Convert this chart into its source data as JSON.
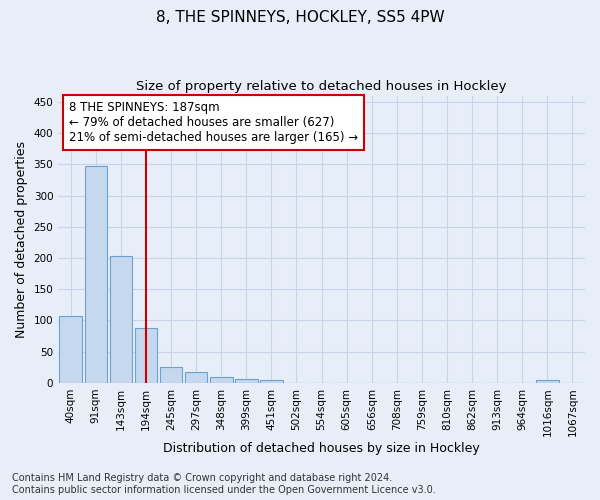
{
  "title": "8, THE SPINNEYS, HOCKLEY, SS5 4PW",
  "subtitle": "Size of property relative to detached houses in Hockley",
  "xlabel": "Distribution of detached houses by size in Hockley",
  "ylabel": "Number of detached properties",
  "categories": [
    "40sqm",
    "91sqm",
    "143sqm",
    "194sqm",
    "245sqm",
    "297sqm",
    "348sqm",
    "399sqm",
    "451sqm",
    "502sqm",
    "554sqm",
    "605sqm",
    "656sqm",
    "708sqm",
    "759sqm",
    "810sqm",
    "862sqm",
    "913sqm",
    "964sqm",
    "1016sqm",
    "1067sqm"
  ],
  "bar_heights": [
    107,
    348,
    204,
    88,
    25,
    17,
    10,
    7,
    5,
    0,
    0,
    0,
    0,
    0,
    0,
    0,
    0,
    0,
    0,
    4,
    0
  ],
  "bar_color": "#c5d8ee",
  "bar_edge_color": "#6ba3d0",
  "vline_color": "#cc0000",
  "annotation_text": "8 THE SPINNEYS: 187sqm\n← 79% of detached houses are smaller (627)\n21% of semi-detached houses are larger (165) →",
  "ylim": [
    0,
    460
  ],
  "yticks": [
    0,
    50,
    100,
    150,
    200,
    250,
    300,
    350,
    400,
    450
  ],
  "footer_line1": "Contains HM Land Registry data © Crown copyright and database right 2024.",
  "footer_line2": "Contains public sector information licensed under the Open Government Licence v3.0.",
  "background_color": "#e8eef8",
  "plot_bg_color": "#e8eef8",
  "grid_color": "#c8d4e8",
  "title_fontsize": 11,
  "subtitle_fontsize": 9.5,
  "axis_label_fontsize": 9,
  "tick_fontsize": 7.5,
  "footer_fontsize": 7,
  "annotation_fontsize": 8.5
}
